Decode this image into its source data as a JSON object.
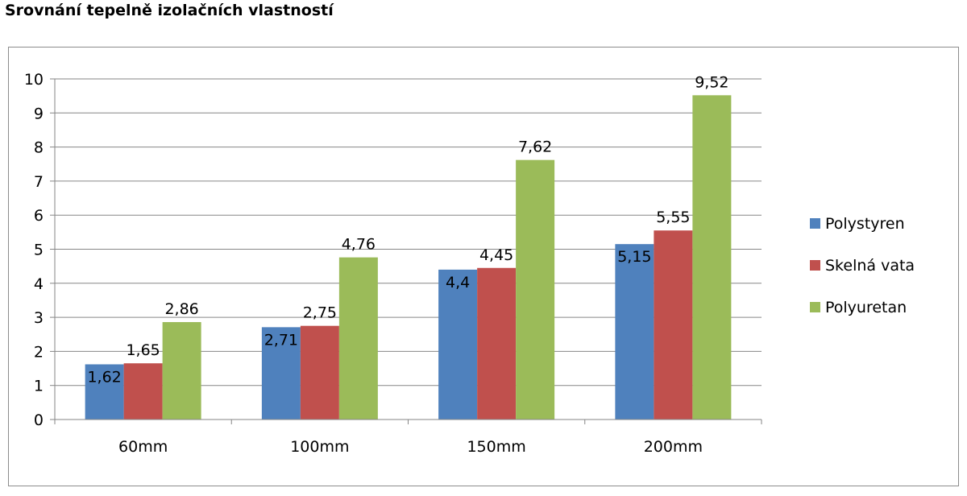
{
  "page": {
    "title": "Srovnání tepelně izolačních vlastností"
  },
  "chart_data": {
    "type": "bar",
    "categories": [
      "60mm",
      "100mm",
      "150mm",
      "200mm"
    ],
    "series": [
      {
        "name": "Polystyren",
        "values": [
          1.62,
          2.71,
          4.4,
          5.15
        ],
        "labels": [
          "1,62",
          "2,71",
          "4,4",
          "5,15"
        ],
        "color": "#4f81bd"
      },
      {
        "name": "Skelná vata",
        "values": [
          1.65,
          2.75,
          4.45,
          5.55
        ],
        "labels": [
          "1,65",
          "2,75",
          "4,45",
          "5,55"
        ],
        "color": "#c0504d"
      },
      {
        "name": "Polyuretan",
        "values": [
          2.86,
          4.76,
          7.62,
          9.52
        ],
        "labels": [
          "2,86",
          "4,76",
          "7,62",
          "9,52"
        ],
        "color": "#9bbb59"
      }
    ],
    "ylim": [
      0,
      10
    ],
    "yticks": [
      0,
      1,
      2,
      3,
      4,
      5,
      6,
      7,
      8,
      9,
      10
    ],
    "grid": true,
    "legend_position": "right"
  }
}
